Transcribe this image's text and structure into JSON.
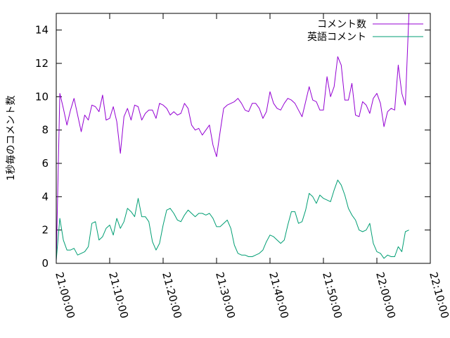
{
  "chart_data": {
    "type": "line",
    "title": "",
    "xlabel": "",
    "ylabel": "1秒毎のコメント数",
    "ylim": [
      0,
      15
    ],
    "yticks": [
      0,
      2,
      4,
      6,
      8,
      10,
      12,
      14
    ],
    "xlim": [
      "21:00:00",
      "22:10:00"
    ],
    "xticks": [
      "21:00:00",
      "21:10:00",
      "21:20:00",
      "21:30:00",
      "21:40:00",
      "21:50:00",
      "22:00:00",
      "22:10:00"
    ],
    "legend_position": "top-right",
    "grid": false,
    "x_interval_seconds": 40,
    "series": [
      {
        "name": "コメント数",
        "color": "#9400d3",
        "values": [
          0.1,
          10.2,
          9.3,
          8.3,
          9.2,
          9.9,
          8.9,
          7.9,
          8.9,
          8.6,
          9.5,
          9.4,
          9.1,
          10.1,
          8.6,
          8.7,
          9.4,
          8.5,
          6.6,
          8.8,
          9.3,
          8.6,
          9.5,
          9.4,
          8.6,
          9.0,
          9.2,
          9.2,
          8.7,
          9.6,
          9.5,
          9.3,
          8.9,
          9.1,
          8.9,
          9.0,
          9.6,
          9.3,
          8.3,
          8.0,
          8.1,
          7.7,
          8.0,
          8.3,
          7.1,
          6.4,
          7.9,
          9.3,
          9.5,
          9.6,
          9.7,
          9.9,
          9.6,
          9.2,
          9.1,
          9.6,
          9.6,
          9.3,
          8.7,
          9.1,
          10.3,
          9.6,
          9.3,
          9.2,
          9.6,
          9.9,
          9.8,
          9.6,
          9.2,
          8.8,
          9.7,
          10.6,
          9.8,
          9.7,
          9.2,
          9.2,
          11.2,
          10.0,
          10.6,
          12.4,
          11.9,
          9.8,
          9.8,
          10.8,
          8.9,
          8.8,
          9.7,
          9.5,
          9.0,
          9.9,
          10.2,
          9.6,
          8.2,
          9.1,
          9.3,
          9.2,
          11.9,
          10.2,
          9.5,
          15.0
        ]
      },
      {
        "name": "英語コメント",
        "color": "#009e73",
        "values": [
          0.2,
          2.7,
          1.4,
          0.8,
          0.8,
          0.9,
          0.5,
          0.6,
          0.7,
          1.0,
          2.4,
          2.5,
          1.4,
          1.6,
          2.1,
          2.3,
          1.7,
          2.7,
          2.1,
          2.5,
          3.3,
          3.1,
          2.8,
          3.9,
          2.8,
          2.8,
          2.5,
          1.3,
          0.8,
          1.2,
          2.3,
          3.2,
          3.3,
          3.0,
          2.6,
          2.5,
          2.9,
          3.2,
          3.0,
          2.8,
          3.0,
          3.0,
          2.9,
          3.0,
          2.7,
          2.2,
          2.2,
          2.4,
          2.6,
          2.1,
          1.1,
          0.6,
          0.5,
          0.5,
          0.4,
          0.4,
          0.5,
          0.6,
          0.8,
          1.3,
          1.7,
          1.6,
          1.4,
          1.2,
          1.4,
          2.3,
          3.1,
          3.1,
          2.4,
          2.5,
          3.2,
          4.2,
          4.0,
          3.6,
          4.1,
          3.9,
          3.8,
          3.7,
          4.4,
          5.0,
          4.7,
          4.1,
          3.3,
          2.9,
          2.6,
          2.0,
          1.9,
          2.0,
          2.4,
          1.2,
          0.7,
          0.6,
          0.3,
          0.5,
          0.4,
          0.4,
          1.0,
          0.7,
          1.9,
          2.0
        ]
      }
    ]
  }
}
